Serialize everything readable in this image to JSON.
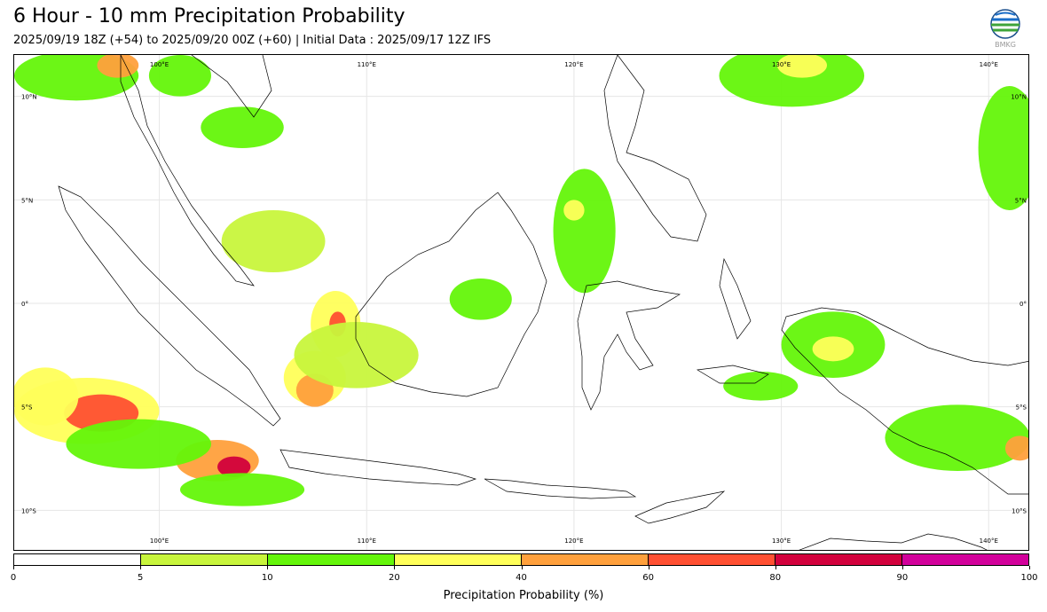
{
  "header": {
    "title": "6 Hour - 10 mm Precipitation Probability",
    "subtitle": "2025/09/19 18Z (+54) to 2025/09/20 00Z (+60) | Initial Data : 2025/09/17 12Z IFS"
  },
  "logo": {
    "text": "BMKG"
  },
  "map": {
    "lon_range": [
      93,
      142
    ],
    "lat_range": [
      -12,
      12
    ],
    "lon_labels": [
      {
        "lon": 100,
        "text": "100°E"
      },
      {
        "lon": 110,
        "text": "110°E"
      },
      {
        "lon": 120,
        "text": "120°E"
      },
      {
        "lon": 130,
        "text": "130°E"
      },
      {
        "lon": 140,
        "text": "140°E"
      }
    ],
    "lat_labels": [
      {
        "lat": 10,
        "text": "10°N"
      },
      {
        "lat": 5,
        "text": "5°N"
      },
      {
        "lat": 0,
        "text": "0°"
      },
      {
        "lat": -5,
        "text": "5°S"
      },
      {
        "lat": -10,
        "text": "10°S"
      }
    ]
  },
  "colorbar": {
    "label": "Precipitation Probability (%)",
    "ticks": [
      "0",
      "5",
      "10",
      "20",
      "40",
      "60",
      "80",
      "90",
      "100"
    ],
    "colors": [
      "#ffffff",
      "#c8f53c",
      "#64f50a",
      "#ffff5a",
      "#ffa03c",
      "#ff5032",
      "#d2003c",
      "#d2009b"
    ]
  },
  "precip_regions": [
    {
      "lon": 96.5,
      "lat": -5.2,
      "rx": 3.5,
      "ry": 1.6,
      "level": 3
    },
    {
      "lon": 97.2,
      "lat": -5.3,
      "rx": 1.8,
      "ry": 0.9,
      "level": 5
    },
    {
      "lon": 102.8,
      "lat": -7.6,
      "rx": 2.0,
      "ry": 1.0,
      "level": 4
    },
    {
      "lon": 103.6,
      "lat": -7.9,
      "rx": 0.8,
      "ry": 0.5,
      "level": 6
    },
    {
      "lon": 94.5,
      "lat": -4.5,
      "rx": 1.6,
      "ry": 1.4,
      "level": 3
    },
    {
      "lon": 107.5,
      "lat": -3.6,
      "rx": 1.5,
      "ry": 1.3,
      "level": 3
    },
    {
      "lon": 107.5,
      "lat": -4.2,
      "rx": 0.9,
      "ry": 0.8,
      "level": 4
    },
    {
      "lon": 108.5,
      "lat": -1.0,
      "rx": 1.2,
      "ry": 1.6,
      "level": 3
    },
    {
      "lon": 108.6,
      "lat": -1.0,
      "rx": 0.4,
      "ry": 0.6,
      "level": 5
    },
    {
      "lon": 109.5,
      "lat": -2.5,
      "rx": 3.0,
      "ry": 1.6,
      "level": 1
    },
    {
      "lon": 96.0,
      "lat": 11.0,
      "rx": 3.0,
      "ry": 1.2,
      "level": 2
    },
    {
      "lon": 98.0,
      "lat": 11.5,
      "rx": 1.0,
      "ry": 0.6,
      "level": 4
    },
    {
      "lon": 101.0,
      "lat": 11.0,
      "rx": 1.5,
      "ry": 1.0,
      "level": 2
    },
    {
      "lon": 104.0,
      "lat": 8.5,
      "rx": 2.0,
      "ry": 1.0,
      "level": 2
    },
    {
      "lon": 120.5,
      "lat": 3.5,
      "rx": 1.5,
      "ry": 3.0,
      "level": 2
    },
    {
      "lon": 120.0,
      "lat": 4.5,
      "rx": 0.5,
      "ry": 0.5,
      "level": 3
    },
    {
      "lon": 130.5,
      "lat": 11.0,
      "rx": 3.5,
      "ry": 1.5,
      "level": 2
    },
    {
      "lon": 131.0,
      "lat": 11.5,
      "rx": 1.2,
      "ry": 0.6,
      "level": 3
    },
    {
      "lon": 141.0,
      "lat": 7.5,
      "rx": 1.5,
      "ry": 3.0,
      "level": 2
    },
    {
      "lon": 132.5,
      "lat": -2.0,
      "rx": 2.5,
      "ry": 1.6,
      "level": 2
    },
    {
      "lon": 132.5,
      "lat": -2.2,
      "rx": 1.0,
      "ry": 0.6,
      "level": 3
    },
    {
      "lon": 138.5,
      "lat": -6.5,
      "rx": 3.5,
      "ry": 1.6,
      "level": 2
    },
    {
      "lon": 141.5,
      "lat": -7.0,
      "rx": 0.7,
      "ry": 0.6,
      "level": 4
    },
    {
      "lon": 129.0,
      "lat": -4.0,
      "rx": 1.8,
      "ry": 0.7,
      "level": 2
    },
    {
      "lon": 105.5,
      "lat": 3.0,
      "rx": 2.5,
      "ry": 1.5,
      "level": 1
    },
    {
      "lon": 104.0,
      "lat": -9.0,
      "rx": 3.0,
      "ry": 0.8,
      "level": 2
    },
    {
      "lon": 99.0,
      "lat": -6.8,
      "rx": 3.5,
      "ry": 1.2,
      "level": 2
    },
    {
      "lon": 115.5,
      "lat": 0.2,
      "rx": 1.5,
      "ry": 1.0,
      "level": 2
    }
  ]
}
